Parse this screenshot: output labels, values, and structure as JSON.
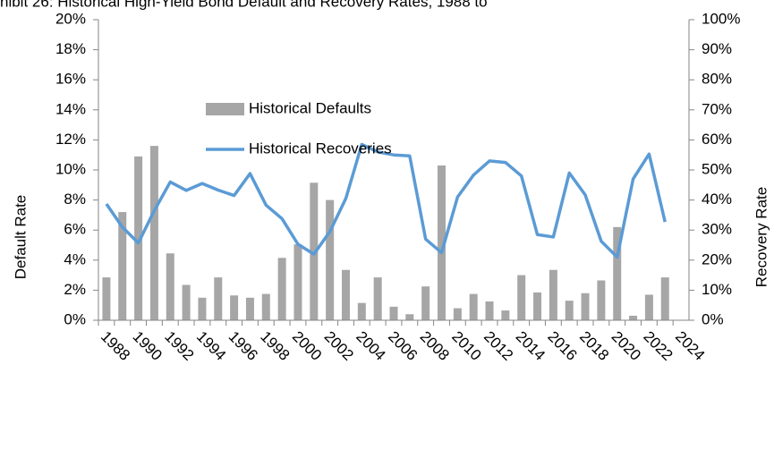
{
  "chart_data": {
    "type": "bar-line",
    "title": "hibit 26: Historical High-Yield Bond Default and Recovery Rates, 1988 to",
    "ylabel": "Default Rate",
    "y2label": "Recovery Rate",
    "categories": [
      "1988",
      null,
      "1990",
      null,
      "1992",
      null,
      "1994",
      null,
      "1996",
      null,
      "1998",
      null,
      "2000",
      null,
      "2002",
      null,
      "2004",
      null,
      "2006",
      null,
      "2008",
      null,
      "2010",
      null,
      "2012",
      null,
      "2014",
      null,
      "2016",
      null,
      "2018",
      null,
      "2020",
      null,
      "2022",
      null,
      "2024"
    ],
    "series": [
      {
        "name": "Historical Defaults",
        "kind": "bar",
        "color": "#a6a6a6",
        "values": [
          2.85,
          7.2,
          10.9,
          11.6,
          4.45,
          2.35,
          1.5,
          2.85,
          1.65,
          1.5,
          1.75,
          4.15,
          5.05,
          9.15,
          8.0,
          3.35,
          1.15,
          2.85,
          0.9,
          0.4,
          2.25,
          10.3,
          0.8,
          1.75,
          1.25,
          0.65,
          3.0,
          1.85,
          3.35,
          1.3,
          1.8,
          2.65,
          6.2,
          0.3,
          1.7,
          2.85,
          null
        ]
      },
      {
        "name": "Historical Recoveries",
        "kind": "line",
        "axis": "y2",
        "color": "#5b9bd5",
        "values": [
          38.7,
          31,
          25.7,
          36.5,
          46,
          43.2,
          45.5,
          43.3,
          41.5,
          48.8,
          38.3,
          33.8,
          25.3,
          22,
          29.5,
          40.5,
          58.5,
          56,
          55,
          54.7,
          27,
          22.5,
          41,
          48.3,
          53,
          52.5,
          48,
          28.5,
          27.7,
          49,
          41.7,
          26.3,
          21,
          47,
          55.3,
          32.7,
          null
        ]
      }
    ],
    "ylim": [
      0,
      20
    ],
    "yticks": [
      {
        "value": 0,
        "label": "0%"
      },
      {
        "value": 2,
        "label": "2%"
      },
      {
        "value": 4,
        "label": "4%"
      },
      {
        "value": 6,
        "label": "6%"
      },
      {
        "value": 8,
        "label": "8%"
      },
      {
        "value": 10,
        "label": "10%"
      },
      {
        "value": 12,
        "label": "12%"
      },
      {
        "value": 14,
        "label": "14%"
      },
      {
        "value": 16,
        "label": "16%"
      },
      {
        "value": 18,
        "label": "18%"
      },
      {
        "value": 20,
        "label": "20%"
      }
    ],
    "y2lim": [
      0,
      100
    ],
    "y2ticks": [
      {
        "value": 0,
        "label": "0%"
      },
      {
        "value": 10,
        "label": "10%"
      },
      {
        "value": 20,
        "label": "20%"
      },
      {
        "value": 30,
        "label": "30%"
      },
      {
        "value": 40,
        "label": "40%"
      },
      {
        "value": 50,
        "label": "50%"
      },
      {
        "value": 60,
        "label": "60%"
      },
      {
        "value": 70,
        "label": "70%"
      },
      {
        "value": 80,
        "label": "80%"
      },
      {
        "value": 90,
        "label": "90%"
      },
      {
        "value": 100,
        "label": "100%"
      }
    ],
    "grid": false,
    "legend": "upper left"
  }
}
